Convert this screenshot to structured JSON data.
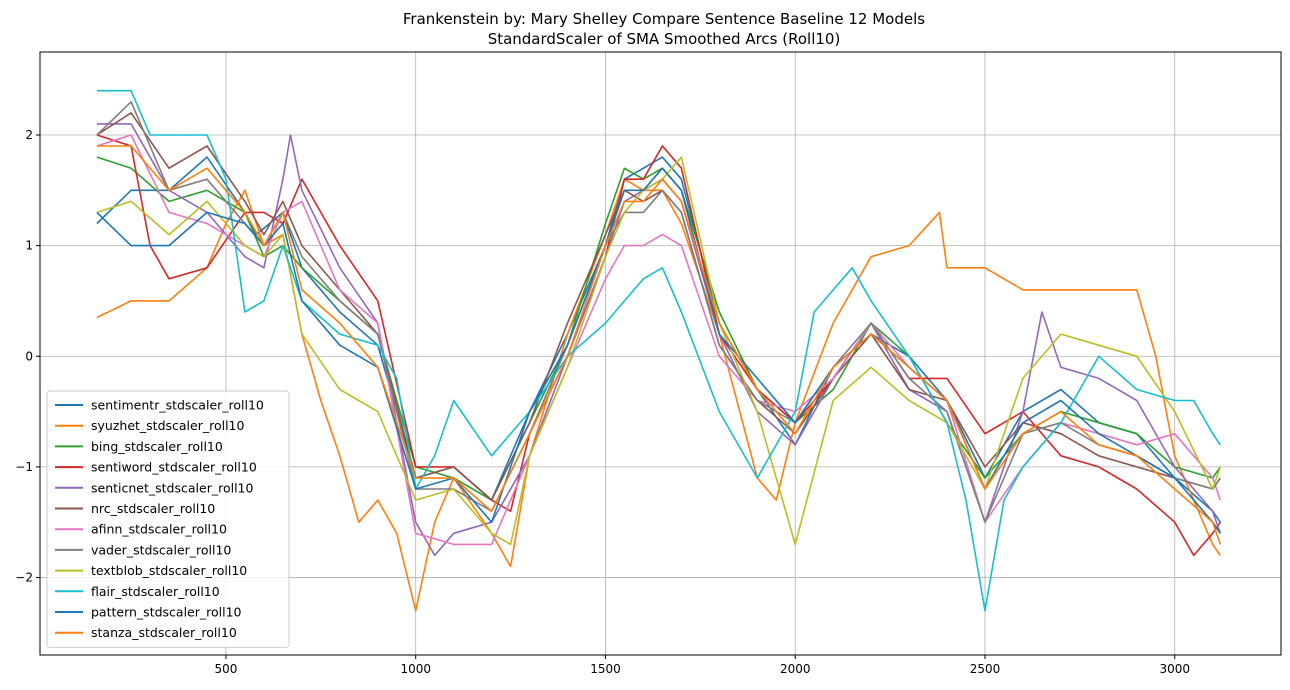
{
  "chart_data": {
    "type": "line",
    "title": "Frankenstein by: Mary Shelley Compare Sentence Baseline 12 Models",
    "subtitle": "StandardScaler of SMA Smoothed Arcs (Roll10)",
    "xlabel": "",
    "ylabel": "",
    "xlim": [
      10,
      3280
    ],
    "ylim": [
      -2.7,
      2.75
    ],
    "xticks": [
      500,
      1000,
      1500,
      2000,
      2500,
      3000
    ],
    "yticks": [
      -2,
      -1,
      0,
      1,
      2
    ],
    "grid": true,
    "legend_position": "lower-left",
    "series": [
      {
        "name": "sentimentr_stdscaler_roll10",
        "color": "#1f77b4",
        "x": [
          160,
          250,
          350,
          450,
          550,
          580,
          650,
          700,
          800,
          900,
          1000,
          1100,
          1200,
          1300,
          1400,
          1500,
          1550,
          1600,
          1650,
          1700,
          1800,
          1900,
          2000,
          2100,
          2200,
          2300,
          2400,
          2500,
          2600,
          2700,
          2800,
          2900,
          3000,
          3100,
          3120
        ],
        "y": [
          1.2,
          1.5,
          1.5,
          1.8,
          1.3,
          1.1,
          1.3,
          0.8,
          0.4,
          0.1,
          -1.1,
          -1.0,
          -1.3,
          -0.5,
          0.2,
          1.0,
          1.6,
          1.7,
          1.8,
          1.6,
          0.3,
          -0.3,
          -0.8,
          -0.1,
          0.2,
          0.0,
          -0.4,
          -1.1,
          -0.5,
          -0.3,
          -0.6,
          -0.7,
          -1.1,
          -1.4,
          -1.5
        ]
      },
      {
        "name": "syuzhet_stdscaler_roll10",
        "color": "#ff7f0e",
        "x": [
          160,
          250,
          350,
          450,
          500,
          550,
          600,
          650,
          700,
          750,
          800,
          850,
          900,
          950,
          1000,
          1050,
          1100,
          1200,
          1250,
          1300,
          1400,
          1500,
          1550,
          1600,
          1650,
          1700,
          1800,
          1900,
          1950,
          2000,
          2100,
          2200,
          2300,
          2380,
          2400,
          2500,
          2600,
          2700,
          2800,
          2900,
          2950,
          3000,
          3100,
          3120
        ],
        "y": [
          0.35,
          0.5,
          0.5,
          0.8,
          1.2,
          1.5,
          1.0,
          1.1,
          0.2,
          -0.4,
          -0.9,
          -1.5,
          -1.3,
          -1.6,
          -2.3,
          -1.5,
          -1.1,
          -1.6,
          -1.9,
          -0.9,
          0.2,
          1.1,
          1.6,
          1.5,
          1.5,
          1.2,
          0.2,
          -1.1,
          -1.3,
          -0.6,
          0.3,
          0.9,
          1.0,
          1.3,
          0.8,
          0.8,
          0.6,
          0.6,
          0.6,
          0.6,
          0.0,
          -0.9,
          -1.7,
          -1.8
        ]
      },
      {
        "name": "bing_stdscaler_roll10",
        "color": "#2ca02c",
        "x": [
          160,
          250,
          350,
          450,
          550,
          600,
          650,
          700,
          800,
          900,
          1000,
          1100,
          1200,
          1300,
          1400,
          1500,
          1550,
          1600,
          1650,
          1700,
          1800,
          1900,
          2000,
          2100,
          2200,
          2300,
          2400,
          2500,
          2600,
          2700,
          2800,
          2900,
          3000,
          3100,
          3120
        ],
        "y": [
          1.8,
          1.7,
          1.4,
          1.5,
          1.3,
          0.9,
          1.0,
          0.8,
          0.5,
          0.2,
          -1.0,
          -1.1,
          -1.3,
          -0.6,
          0.1,
          1.2,
          1.7,
          1.6,
          1.7,
          1.5,
          0.4,
          -0.3,
          -0.6,
          -0.3,
          0.3,
          0.0,
          -0.6,
          -1.1,
          -0.7,
          -0.5,
          -0.6,
          -0.7,
          -1.0,
          -1.1,
          -1.0
        ]
      },
      {
        "name": "sentiword_stdscaler_roll10",
        "color": "#d62728",
        "x": [
          160,
          250,
          300,
          350,
          450,
          550,
          600,
          650,
          700,
          800,
          900,
          1000,
          1100,
          1200,
          1250,
          1300,
          1400,
          1500,
          1550,
          1600,
          1650,
          1700,
          1800,
          1900,
          2000,
          2100,
          2200,
          2300,
          2400,
          2500,
          2600,
          2700,
          2800,
          2900,
          3000,
          3050,
          3100,
          3120
        ],
        "y": [
          2.0,
          1.9,
          1.0,
          0.7,
          0.8,
          1.3,
          1.3,
          1.2,
          1.6,
          1.0,
          0.5,
          -1.0,
          -1.0,
          -1.3,
          -1.4,
          -0.7,
          0.0,
          0.9,
          1.6,
          1.6,
          1.9,
          1.7,
          0.2,
          -0.3,
          -0.6,
          -0.2,
          0.3,
          -0.2,
          -0.2,
          -0.7,
          -0.5,
          -0.9,
          -1.0,
          -1.2,
          -1.5,
          -1.8,
          -1.6,
          -1.5
        ]
      },
      {
        "name": "senticnet_stdscaler_roll10",
        "color": "#9467bd",
        "x": [
          160,
          250,
          350,
          450,
          550,
          600,
          650,
          670,
          700,
          800,
          900,
          1000,
          1050,
          1100,
          1200,
          1300,
          1400,
          1500,
          1550,
          1600,
          1650,
          1700,
          1800,
          1900,
          2000,
          2100,
          2200,
          2300,
          2400,
          2500,
          2600,
          2650,
          2700,
          2800,
          2900,
          3000,
          3100,
          3120
        ],
        "y": [
          2.1,
          2.1,
          1.5,
          1.3,
          0.9,
          0.8,
          1.6,
          2.0,
          1.5,
          0.8,
          0.3,
          -1.5,
          -1.8,
          -1.6,
          -1.5,
          -0.9,
          0.0,
          0.9,
          1.4,
          1.5,
          1.6,
          1.4,
          0.2,
          -0.5,
          -0.8,
          -0.2,
          0.3,
          -0.3,
          -0.5,
          -1.5,
          -0.5,
          0.4,
          -0.1,
          -0.2,
          -0.4,
          -1.0,
          -1.4,
          -1.6
        ]
      },
      {
        "name": "nrc_stdscaler_roll10",
        "color": "#8c564b",
        "x": [
          160,
          250,
          350,
          450,
          550,
          600,
          650,
          700,
          800,
          900,
          1000,
          1100,
          1200,
          1300,
          1400,
          1500,
          1550,
          1600,
          1650,
          1700,
          1800,
          1900,
          2000,
          2100,
          2200,
          2300,
          2400,
          2500,
          2600,
          2700,
          2800,
          2900,
          3000,
          3100,
          3120
        ],
        "y": [
          2.0,
          2.2,
          1.7,
          1.9,
          1.4,
          1.1,
          1.4,
          1.0,
          0.6,
          0.2,
          -1.1,
          -1.0,
          -1.3,
          -0.6,
          0.3,
          1.1,
          1.5,
          1.4,
          1.5,
          1.3,
          0.1,
          -0.4,
          -0.7,
          -0.2,
          0.2,
          -0.3,
          -0.4,
          -1.0,
          -0.6,
          -0.7,
          -0.9,
          -1.0,
          -1.1,
          -1.2,
          -1.1
        ]
      },
      {
        "name": "afinn_stdscaler_roll10",
        "color": "#e377c2",
        "x": [
          160,
          250,
          350,
          450,
          550,
          600,
          650,
          700,
          800,
          900,
          1000,
          1100,
          1200,
          1300,
          1400,
          1500,
          1550,
          1600,
          1650,
          1700,
          1800,
          1900,
          2000,
          2100,
          2200,
          2300,
          2400,
          2500,
          2600,
          2700,
          2800,
          2900,
          3000,
          3100,
          3120
        ],
        "y": [
          1.9,
          2.0,
          1.3,
          1.2,
          1.0,
          0.9,
          1.3,
          1.4,
          0.6,
          0.3,
          -1.6,
          -1.7,
          -1.7,
          -0.9,
          -0.1,
          0.7,
          1.0,
          1.0,
          1.1,
          1.0,
          0.0,
          -0.4,
          -0.5,
          -0.2,
          0.3,
          -0.1,
          -0.4,
          -1.5,
          -1.0,
          -0.6,
          -0.7,
          -0.8,
          -0.7,
          -1.1,
          -1.3
        ]
      },
      {
        "name": "vader_stdscaler_roll10",
        "color": "#7f7f7f",
        "x": [
          160,
          250,
          350,
          450,
          550,
          600,
          650,
          700,
          800,
          900,
          1000,
          1100,
          1200,
          1300,
          1400,
          1500,
          1550,
          1600,
          1650,
          1700,
          1800,
          1900,
          2000,
          2100,
          2200,
          2300,
          2400,
          2500,
          2600,
          2700,
          2800,
          2900,
          3000,
          3100,
          3120
        ],
        "y": [
          2.0,
          2.3,
          1.5,
          1.6,
          1.2,
          1.0,
          1.3,
          0.9,
          0.5,
          0.2,
          -1.2,
          -1.2,
          -1.4,
          -0.7,
          0.1,
          1.0,
          1.3,
          1.3,
          1.5,
          1.3,
          0.1,
          -0.4,
          -0.6,
          -0.1,
          0.3,
          -0.2,
          -0.5,
          -1.5,
          -0.7,
          -0.6,
          -0.8,
          -0.9,
          -1.1,
          -1.2,
          -1.1
        ]
      },
      {
        "name": "textblob_stdscaler_roll10",
        "color": "#bcbd22",
        "x": [
          160,
          250,
          350,
          450,
          550,
          600,
          650,
          700,
          800,
          900,
          1000,
          1100,
          1200,
          1250,
          1300,
          1400,
          1500,
          1550,
          1600,
          1650,
          1700,
          1800,
          1900,
          2000,
          2100,
          2200,
          2300,
          2400,
          2500,
          2600,
          2700,
          2800,
          2900,
          3000,
          3100,
          3120
        ],
        "y": [
          1.3,
          1.4,
          1.1,
          1.4,
          1.0,
          0.9,
          1.1,
          0.2,
          -0.3,
          -0.5,
          -1.3,
          -1.2,
          -1.6,
          -1.7,
          -0.9,
          -0.1,
          0.9,
          1.3,
          1.5,
          1.6,
          1.8,
          0.3,
          -0.5,
          -1.7,
          -0.4,
          -0.1,
          -0.4,
          -0.6,
          -1.2,
          -0.2,
          0.2,
          0.1,
          0.0,
          -0.5,
          -1.2,
          -1.0
        ]
      },
      {
        "name": "flair_stdscaler_roll10",
        "color": "#17becf",
        "x": [
          160,
          250,
          300,
          350,
          450,
          500,
          550,
          600,
          650,
          700,
          800,
          900,
          950,
          1000,
          1050,
          1100,
          1200,
          1300,
          1400,
          1500,
          1550,
          1600,
          1650,
          1700,
          1800,
          1900,
          2000,
          2050,
          2100,
          2150,
          2200,
          2300,
          2400,
          2450,
          2500,
          2550,
          2600,
          2700,
          2800,
          2900,
          3000,
          3050,
          3100,
          3120
        ],
        "y": [
          2.4,
          2.4,
          2.0,
          2.0,
          2.0,
          1.6,
          0.4,
          0.5,
          1.0,
          0.5,
          0.2,
          0.1,
          -0.2,
          -1.2,
          -0.9,
          -0.4,
          -0.9,
          -0.5,
          0.0,
          0.3,
          0.5,
          0.7,
          0.8,
          0.4,
          -0.5,
          -1.1,
          -0.5,
          0.4,
          0.6,
          0.8,
          0.5,
          0.0,
          -0.6,
          -1.3,
          -2.3,
          -1.3,
          -1.0,
          -0.6,
          0.0,
          -0.3,
          -0.4,
          -0.4,
          -0.7,
          -0.8
        ]
      },
      {
        "name": "pattern_stdscaler_roll10",
        "color": "#1f77b4",
        "x": [
          160,
          250,
          350,
          450,
          550,
          600,
          650,
          700,
          800,
          900,
          1000,
          1100,
          1200,
          1300,
          1400,
          1500,
          1550,
          1600,
          1650,
          1700,
          1800,
          1900,
          2000,
          2100,
          2200,
          2300,
          2400,
          2500,
          2600,
          2700,
          2800,
          2900,
          3000,
          3100,
          3120
        ],
        "y": [
          1.3,
          1.0,
          1.0,
          1.3,
          1.2,
          1.0,
          1.2,
          0.5,
          0.1,
          -0.1,
          -1.2,
          -1.1,
          -1.5,
          -0.5,
          0.1,
          1.0,
          1.5,
          1.5,
          1.7,
          1.5,
          0.2,
          -0.2,
          -0.6,
          -0.1,
          0.2,
          -0.1,
          -0.4,
          -1.2,
          -0.6,
          -0.4,
          -0.7,
          -0.9,
          -1.1,
          -1.5,
          -1.6
        ]
      },
      {
        "name": "stanza_stdscaler_roll10",
        "color": "#ff7f0e",
        "x": [
          160,
          250,
          350,
          450,
          550,
          600,
          650,
          700,
          800,
          900,
          1000,
          1100,
          1200,
          1300,
          1400,
          1500,
          1550,
          1600,
          1650,
          1700,
          1800,
          1900,
          2000,
          2100,
          2200,
          2300,
          2400,
          2500,
          2600,
          2700,
          2800,
          2900,
          3000,
          3100,
          3120
        ],
        "y": [
          1.9,
          1.9,
          1.5,
          1.7,
          1.3,
          1.0,
          1.3,
          0.6,
          0.3,
          -0.1,
          -1.1,
          -1.1,
          -1.4,
          -0.7,
          0.0,
          1.0,
          1.4,
          1.4,
          1.6,
          1.4,
          0.3,
          -0.3,
          -0.7,
          -0.1,
          0.2,
          -0.1,
          -0.4,
          -1.2,
          -0.7,
          -0.5,
          -0.8,
          -0.9,
          -1.2,
          -1.5,
          -1.7
        ]
      }
    ]
  }
}
